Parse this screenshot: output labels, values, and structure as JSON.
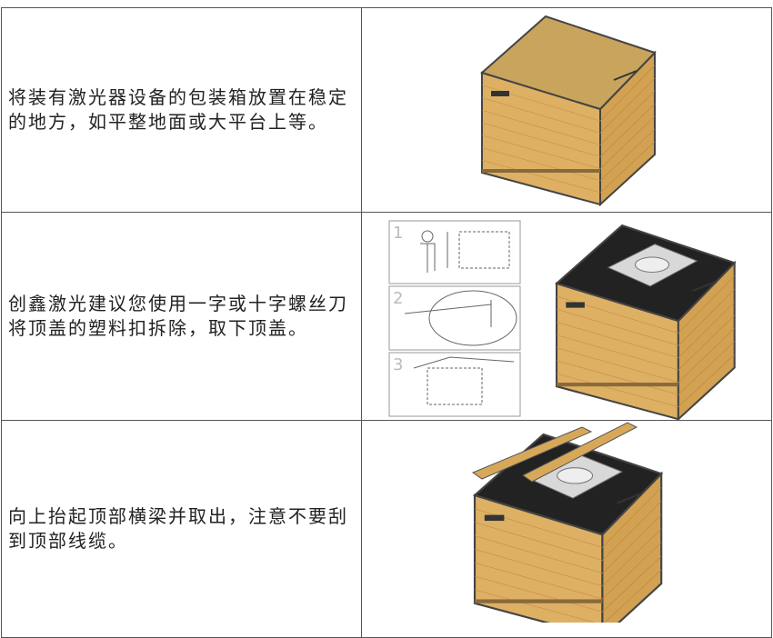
{
  "table": {
    "rows": [
      {
        "text": "将装有激光器设备的包装箱放置在稳定的地方，如平整地面或大平台上等。"
      },
      {
        "text": "创鑫激光建议您使用一字或十字螺丝刀将顶盖的塑料扣拆除，取下顶盖。"
      },
      {
        "text": "向上抬起顶部横梁并取出，注意不要刮到顶部线缆。"
      }
    ]
  },
  "steps": [
    "1",
    "2",
    "3"
  ]
}
